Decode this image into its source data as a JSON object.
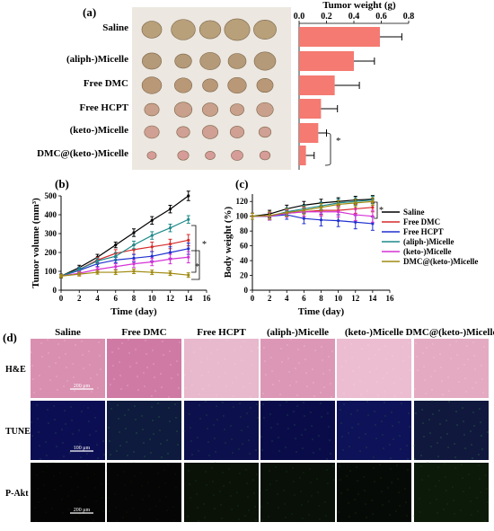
{
  "panel_a": {
    "label": "(a)",
    "row_labels": [
      "Saline",
      "(aliph-)Micelle",
      "Free DMC",
      "Free HCPT",
      "(keto-)Micelle",
      "DMC@(keto-)Micelle"
    ],
    "bar_title": "Tumor weight (g)",
    "bar_ticks": [
      "0.0",
      "0.2",
      "0.4",
      "0.6",
      "0.8"
    ],
    "significance": "*"
  },
  "panel_b": {
    "label": "(b)",
    "significance": [
      "*",
      "*"
    ]
  },
  "panel_c": {
    "label": "(c)",
    "significance": [
      "*"
    ]
  },
  "panel_d": {
    "label": "(d)",
    "columns": [
      "Saline",
      "Free DMC",
      "Free HCPT",
      "(aliph-)Micelle",
      "(keto-)Micelle",
      "DMC@(keto-)Micelle"
    ],
    "rows": [
      "H&E",
      "TUNEL",
      "P-Akt"
    ],
    "scalebars": [
      "200 μm",
      "100 μm",
      "200 μm"
    ],
    "colors": {
      "he": "#d88fae",
      "tunel": "#10124a",
      "pakt": "#050805"
    }
  },
  "chart_data": [
    {
      "type": "bar",
      "orientation": "horizontal",
      "title": "Tumor weight (g)",
      "categories": [
        "Saline",
        "(aliph-)Micelle",
        "Free DMC",
        "Free HCPT",
        "(keto-)Micelle",
        "DMC@(keto-)Micelle"
      ],
      "values": [
        0.59,
        0.4,
        0.26,
        0.16,
        0.14,
        0.05
      ],
      "errors": [
        0.16,
        0.15,
        0.18,
        0.12,
        0.06,
        0.06
      ],
      "xlim": [
        0,
        0.8
      ],
      "color": "#f47a72"
    },
    {
      "type": "line",
      "xlabel": "Time (day)",
      "ylabel": "Tumor volume (mm³)",
      "x": [
        0,
        2,
        4,
        6,
        8,
        10,
        12,
        14
      ],
      "xlim": [
        0,
        16
      ],
      "ylim": [
        0,
        500
      ],
      "xticks": [
        "0",
        "2",
        "4",
        "6",
        "8",
        "10",
        "12",
        "14",
        "16"
      ],
      "yticks": [
        "0",
        "100",
        "200",
        "300",
        "400",
        "500"
      ],
      "series": [
        {
          "color": "#000000",
          "values": [
            75,
            120,
            175,
            240,
            305,
            370,
            430,
            500
          ],
          "errors": [
            10,
            12,
            15,
            15,
            20,
            20,
            20,
            25
          ]
        },
        {
          "color": "#d62a2a",
          "values": [
            75,
            110,
            160,
            195,
            215,
            230,
            245,
            265
          ],
          "errors": [
            8,
            12,
            15,
            20,
            25,
            25,
            25,
            30
          ]
        },
        {
          "color": "#2030d0",
          "values": [
            75,
            105,
            140,
            160,
            170,
            180,
            200,
            220
          ],
          "errors": [
            8,
            12,
            15,
            15,
            20,
            25,
            30,
            30
          ]
        },
        {
          "color": "#1e8a8a",
          "values": [
            75,
            110,
            155,
            180,
            240,
            290,
            330,
            375
          ],
          "errors": [
            8,
            12,
            15,
            20,
            20,
            20,
            20,
            20
          ]
        },
        {
          "color": "#d632d6",
          "values": [
            75,
            90,
            110,
            125,
            140,
            150,
            165,
            175
          ],
          "errors": [
            8,
            10,
            12,
            15,
            20,
            20,
            25,
            30
          ]
        },
        {
          "color": "#a08a10",
          "values": [
            75,
            85,
            95,
            95,
            100,
            95,
            90,
            80
          ],
          "errors": [
            8,
            10,
            10,
            12,
            12,
            12,
            12,
            12
          ]
        }
      ]
    },
    {
      "type": "line",
      "xlabel": "Time (day)",
      "ylabel": "Body weight (%)",
      "x": [
        0,
        2,
        4,
        6,
        8,
        10,
        12,
        14
      ],
      "xlim": [
        0,
        16
      ],
      "ylim": [
        0,
        130
      ],
      "xticks": [
        "0",
        "2",
        "4",
        "6",
        "8",
        "10",
        "12",
        "14",
        "16"
      ],
      "yticks": [
        "0",
        "20",
        "40",
        "60",
        "80",
        "100",
        "120"
      ],
      "legend_position": "right",
      "series": [
        {
          "name": "Saline",
          "color": "#000000",
          "values": [
            100,
            103,
            110,
            115,
            118,
            120,
            122,
            123
          ],
          "errors": [
            4,
            5,
            5,
            5,
            5,
            5,
            5,
            5
          ]
        },
        {
          "name": "Free DMC",
          "color": "#d62a2a",
          "values": [
            100,
            100,
            104,
            106,
            108,
            108,
            110,
            112
          ],
          "errors": [
            4,
            5,
            5,
            6,
            6,
            6,
            6,
            6
          ]
        },
        {
          "name": "Free HCPT",
          "color": "#2030d0",
          "values": [
            100,
            100,
            102,
            97,
            95,
            94,
            92,
            90
          ],
          "errors": [
            4,
            5,
            6,
            7,
            8,
            8,
            9,
            9
          ]
        },
        {
          "name": "(aliph-)Micelle",
          "color": "#1e8a8a",
          "values": [
            100,
            100,
            106,
            110,
            114,
            118,
            120,
            122
          ],
          "errors": [
            4,
            5,
            5,
            5,
            5,
            5,
            5,
            5
          ]
        },
        {
          "name": "(keto-)Micelle",
          "color": "#d632d6",
          "values": [
            100,
            100,
            104,
            106,
            106,
            106,
            102,
            100
          ],
          "errors": [
            4,
            5,
            5,
            6,
            6,
            7,
            8,
            8
          ]
        },
        {
          "name": "DMC@(keto-)Micelle",
          "color": "#a08a10",
          "values": [
            100,
            101,
            105,
            108,
            112,
            116,
            118,
            120
          ],
          "errors": [
            4,
            5,
            5,
            5,
            5,
            5,
            5,
            5
          ]
        }
      ]
    }
  ]
}
